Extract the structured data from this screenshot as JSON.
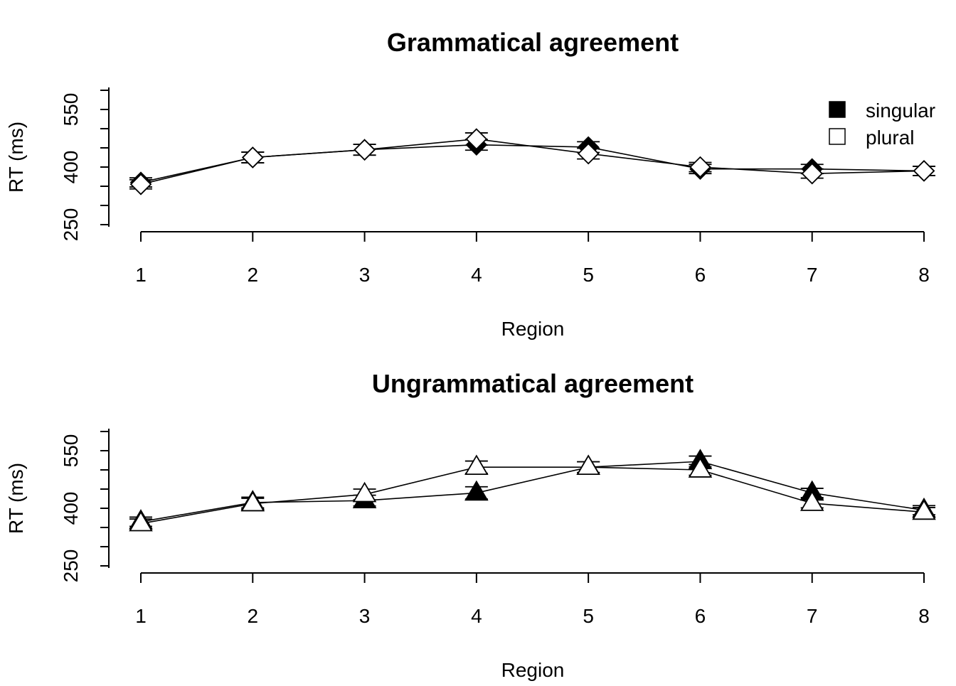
{
  "chart_data": [
    {
      "type": "line",
      "title": "Grammatical agreement",
      "xlabel": "Region",
      "ylabel": "RT (ms)",
      "x": [
        1,
        2,
        3,
        4,
        5,
        6,
        7,
        8
      ],
      "yticks": [
        250,
        400,
        550
      ],
      "ylim": [
        250,
        600
      ],
      "legend": {
        "position": "top-right"
      },
      "marker": "diamond",
      "series": [
        {
          "name": "singular",
          "fill": "#000000",
          "values": [
            360,
            425,
            445,
            458,
            452,
            395,
            395,
            390
          ],
          "se": [
            12,
            14,
            14,
            14,
            14,
            12,
            12,
            12
          ]
        },
        {
          "name": "plural",
          "fill": "#ffffff",
          "values": [
            355,
            425,
            445,
            473,
            435,
            400,
            383,
            390
          ],
          "se": [
            12,
            14,
            14,
            16,
            14,
            12,
            12,
            12
          ]
        }
      ]
    },
    {
      "type": "line",
      "title": "Ungrammatical agreement",
      "xlabel": "Region",
      "ylabel": "RT (ms)",
      "x": [
        1,
        2,
        3,
        4,
        5,
        6,
        7,
        8
      ],
      "yticks": [
        250,
        400,
        550
      ],
      "ylim": [
        250,
        600
      ],
      "marker": "triangle",
      "series": [
        {
          "name": "singular",
          "fill": "#000000",
          "values": [
            365,
            415,
            420,
            440,
            507,
            522,
            440,
            395
          ],
          "se": [
            12,
            14,
            14,
            16,
            14,
            14,
            12,
            12
          ]
        },
        {
          "name": "plural",
          "fill": "#ffffff",
          "values": [
            360,
            412,
            436,
            507,
            507,
            500,
            413,
            390
          ],
          "se": [
            12,
            14,
            14,
            16,
            14,
            14,
            12,
            12
          ]
        }
      ]
    }
  ]
}
